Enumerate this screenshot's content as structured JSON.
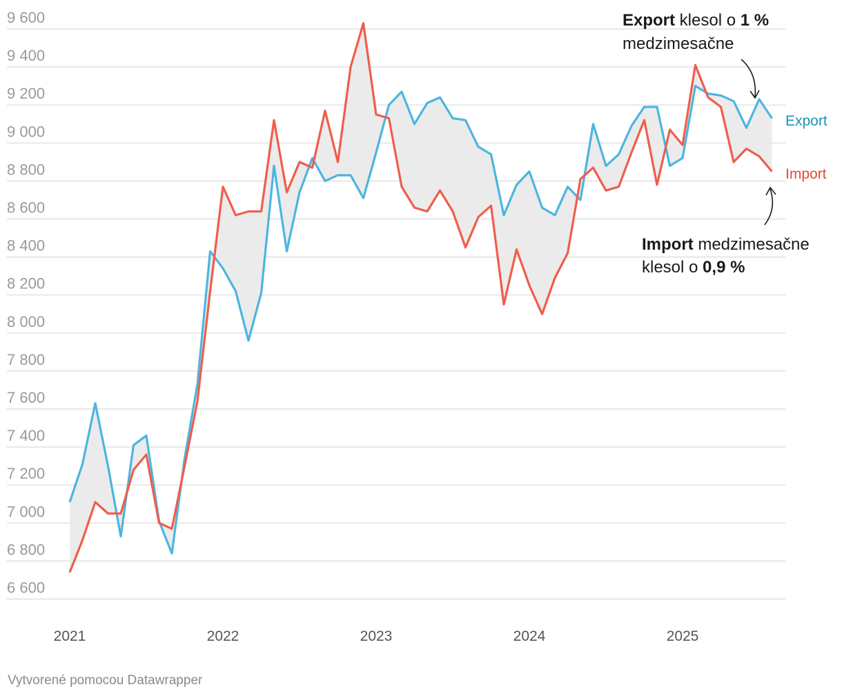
{
  "chart_data": {
    "type": "line",
    "ylim": [
      6500,
      9700
    ],
    "yticks": [
      "9 600",
      "9 400",
      "9 200",
      "9 000",
      "8 800",
      "8 600",
      "8 400",
      "8 200",
      "8 000",
      "7 800",
      "7 600",
      "7 400",
      "7 200",
      "7 000",
      "6 800",
      "6 600"
    ],
    "ytick_values": [
      9600,
      9400,
      9200,
      9000,
      8800,
      8600,
      8400,
      8200,
      8000,
      7800,
      7600,
      7400,
      7200,
      7000,
      6800,
      6600
    ],
    "xticks": [
      "2021",
      "2022",
      "2023",
      "2024",
      "2025"
    ],
    "xtick_values": [
      2021,
      2022,
      2023,
      2024,
      2025
    ],
    "x_start": 2021.0,
    "x_step": 0.08333,
    "grid": true,
    "shaded_between_series": true,
    "colors": {
      "export": "#4cb5e0",
      "import": "#f05d4b",
      "export_label": "#1a93b8",
      "import_label": "#e04b3a",
      "fill": "#ebebeb",
      "grid": "#dadada"
    },
    "series": [
      {
        "name": "Export",
        "values": [
          7110,
          7310,
          7630,
          7300,
          6930,
          7410,
          7460,
          7010,
          6840,
          7340,
          7730,
          8430,
          8340,
          8220,
          7960,
          8210,
          8880,
          8430,
          8740,
          8920,
          8800,
          8830,
          8830,
          8710,
          8950,
          9200,
          9270,
          9100,
          9210,
          9240,
          9130,
          9120,
          8980,
          8940,
          8620,
          8780,
          8850,
          8660,
          8620,
          8770,
          8700,
          9100,
          8880,
          8940,
          9090,
          9190,
          9190,
          8880,
          8920,
          9300,
          9260,
          9250,
          9220,
          9080,
          9230,
          9130
        ]
      },
      {
        "name": "Import",
        "values": [
          6740,
          6910,
          7110,
          7050,
          7050,
          7280,
          7360,
          7000,
          6970,
          7300,
          7640,
          8220,
          8770,
          8620,
          8640,
          8640,
          9120,
          8740,
          8900,
          8870,
          9170,
          8900,
          9400,
          9630,
          9150,
          9130,
          8770,
          8660,
          8640,
          8750,
          8640,
          8450,
          8610,
          8670,
          8150,
          8440,
          8250,
          8100,
          8290,
          8420,
          8810,
          8870,
          8750,
          8770,
          8950,
          9120,
          8780,
          9070,
          8990,
          9410,
          9240,
          9190,
          8900,
          8970,
          8930,
          8850
        ]
      }
    ],
    "annotations": {
      "export_bold": "Export",
      "export_mid": " klesol o ",
      "export_value": "1 %",
      "export_line2": "medzimesačne",
      "import_bold": "Import",
      "import_mid": " medzimesačne",
      "import_line2a": "klesol o ",
      "import_value": "0,9 %"
    }
  },
  "footer": "Vytvorené pomocou Datawrapper"
}
